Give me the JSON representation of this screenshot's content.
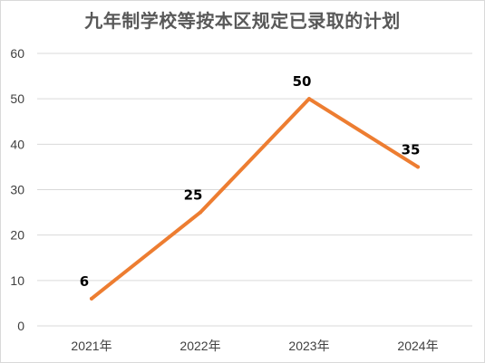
{
  "chart_data": {
    "type": "line",
    "title": "九年制学校等按本区规定已录取的计划",
    "categories": [
      "2021年",
      "2022年",
      "2023年",
      "2024年"
    ],
    "series": [
      {
        "values": [
          6,
          25,
          50,
          35
        ],
        "color": "#ed7d31"
      }
    ],
    "yticks": [
      0,
      10,
      20,
      30,
      40,
      50,
      60
    ],
    "ylim": [
      0,
      60
    ],
    "grid": true,
    "legend": "none",
    "data_labels": true
  }
}
